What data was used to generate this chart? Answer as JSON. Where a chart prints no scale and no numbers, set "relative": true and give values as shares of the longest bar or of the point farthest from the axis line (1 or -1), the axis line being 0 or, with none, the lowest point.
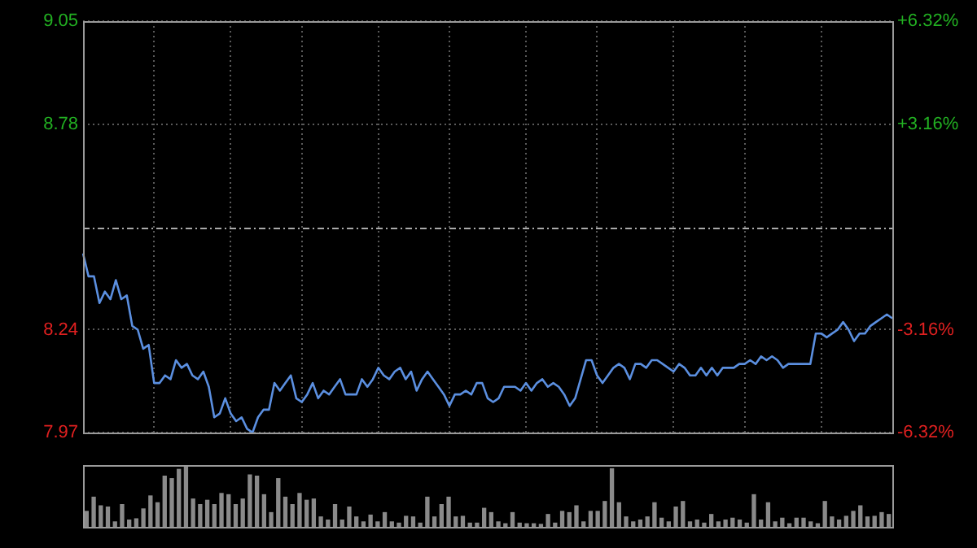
{
  "chart_data": [
    {
      "type": "line",
      "color": "#5b8fe0",
      "categories": [
        null,
        null,
        null,
        null,
        null,
        null,
        null,
        null,
        null,
        null,
        null,
        null,
        null,
        null,
        null,
        null,
        null,
        null,
        null,
        null,
        null,
        null,
        null,
        null,
        null,
        null,
        null,
        null,
        null,
        null,
        null,
        null,
        null,
        null,
        null,
        null,
        null,
        null,
        null,
        null,
        null,
        null,
        null,
        null,
        null,
        null,
        null,
        null,
        null,
        null,
        null,
        null,
        null,
        null,
        null,
        null,
        null,
        null,
        null,
        null,
        null,
        null,
        null,
        null,
        null,
        null,
        null,
        null,
        null,
        null,
        null,
        null,
        null,
        null,
        null,
        null,
        null,
        null,
        null,
        null,
        null,
        null,
        null,
        null,
        null,
        null,
        null,
        null,
        null,
        null,
        null,
        null,
        null,
        null,
        null,
        null,
        null,
        null,
        null,
        null,
        null,
        null,
        null,
        null,
        null,
        null,
        null,
        null,
        null,
        null,
        null,
        null,
        null,
        null,
        null,
        null,
        null,
        null,
        null,
        null,
        null,
        null,
        null,
        null,
        null,
        null,
        null,
        null,
        null,
        null,
        null,
        null,
        null,
        null,
        null,
        null,
        null,
        null,
        null,
        null,
        null,
        null,
        null,
        null,
        null,
        null,
        null,
        null,
        null
      ],
      "values": [
        8.44,
        8.38,
        8.38,
        8.31,
        8.34,
        8.32,
        8.37,
        8.32,
        8.33,
        8.25,
        8.24,
        8.19,
        8.2,
        8.1,
        8.1,
        8.12,
        8.11,
        8.16,
        8.14,
        8.15,
        8.12,
        8.11,
        8.13,
        8.09,
        8.01,
        8.02,
        8.06,
        8.02,
        8.0,
        8.01,
        7.98,
        7.97,
        8.01,
        8.03,
        8.03,
        8.1,
        8.08,
        8.1,
        8.12,
        8.06,
        8.05,
        8.07,
        8.1,
        8.06,
        8.08,
        8.07,
        8.09,
        8.11,
        8.07,
        8.07,
        8.07,
        8.11,
        8.09,
        8.11,
        8.14,
        8.12,
        8.11,
        8.13,
        8.14,
        8.11,
        8.13,
        8.08,
        8.11,
        8.13,
        8.11,
        8.09,
        8.07,
        8.04,
        8.07,
        8.07,
        8.08,
        8.07,
        8.1,
        8.1,
        8.06,
        8.05,
        8.06,
        8.09,
        8.09,
        8.09,
        8.08,
        8.1,
        8.08,
        8.1,
        8.11,
        8.09,
        8.1,
        8.09,
        8.07,
        8.04,
        8.06,
        8.11,
        8.16,
        8.16,
        8.12,
        8.1,
        8.12,
        8.14,
        8.15,
        8.14,
        8.11,
        8.15,
        8.15,
        8.14,
        8.16,
        8.16,
        8.15,
        8.14,
        8.13,
        8.15,
        8.14,
        8.12,
        8.12,
        8.14,
        8.12,
        8.14,
        8.12,
        8.14,
        8.14,
        8.14,
        8.15,
        8.15,
        8.16,
        8.15,
        8.17,
        8.16,
        8.17,
        8.16,
        8.14,
        8.15,
        8.15,
        8.15,
        8.15,
        8.15,
        8.23,
        8.23,
        8.22,
        8.23,
        8.24,
        8.26,
        8.24,
        8.21,
        8.23,
        8.23,
        8.25,
        8.26,
        8.27,
        8.28,
        8.27
      ],
      "ylim": [
        7.97,
        9.05
      ],
      "yticks": [
        7.97,
        8.24,
        8.78,
        9.05
      ],
      "ref_lines": [
        {
          "axis": "y",
          "value": 8.51,
          "color": "#aaaaaa",
          "line_style": "dashed"
        }
      ],
      "y2lim": [
        -6.32,
        6.32
      ],
      "y2ticks": [
        {
          "value": -6.32,
          "label": "-6.32%"
        },
        {
          "value": -3.16,
          "label": "-3.16%"
        },
        {
          "value": 3.16,
          "label": "+3.16%"
        },
        {
          "value": 6.32,
          "label": "+6.32%"
        }
      ],
      "grid": true,
      "legend": false
    },
    {
      "type": "bar",
      "color": "#8a8a8a",
      "relative": true,
      "categories": [
        null,
        null,
        null,
        null,
        null,
        null,
        null,
        null,
        null,
        null,
        null,
        null,
        null,
        null,
        null,
        null,
        null,
        null,
        null,
        null,
        null,
        null,
        null,
        null,
        null,
        null,
        null,
        null,
        null,
        null,
        null,
        null,
        null,
        null,
        null,
        null,
        null,
        null,
        null,
        null,
        null,
        null,
        null,
        null,
        null,
        null,
        null,
        null,
        null,
        null,
        null,
        null,
        null,
        null,
        null,
        null,
        null,
        null,
        null,
        null,
        null,
        null,
        null,
        null,
        null,
        null,
        null,
        null,
        null,
        null,
        null,
        null,
        null,
        null,
        null,
        null,
        null,
        null,
        null,
        null,
        null,
        null,
        null,
        null,
        null,
        null,
        null,
        null,
        null,
        null,
        null,
        null,
        null,
        null,
        null,
        null,
        null,
        null,
        null,
        null,
        null,
        null,
        null,
        null,
        null,
        null,
        null,
        null,
        null,
        null,
        null,
        null,
        null,
        null
      ],
      "values": [
        0.25,
        0.48,
        0.34,
        0.32,
        0.08,
        0.36,
        0.11,
        0.13,
        0.29,
        0.5,
        0.39,
        0.82,
        0.78,
        0.93,
        1,
        0.45,
        0.36,
        0.43,
        0.36,
        0.54,
        0.52,
        0.36,
        0.45,
        0.84,
        0.82,
        0.52,
        0.23,
        0.78,
        0.48,
        0.36,
        0.54,
        0.43,
        0.45,
        0.16,
        0.11,
        0.36,
        0.11,
        0.32,
        0.16,
        0.08,
        0.19,
        0.08,
        0.23,
        0.08,
        0.06,
        0.17,
        0.16,
        0.06,
        0.48,
        0.16,
        0.36,
        0.48,
        0.16,
        0.17,
        0.06,
        0.06,
        0.3,
        0.23,
        0.08,
        0.05,
        0.23,
        0.06,
        0.05,
        0.05,
        0.04,
        0.2,
        0.06,
        0.25,
        0.23,
        0.34,
        0.08,
        0.25,
        0.25,
        0.41,
        0.94,
        0.39,
        0.16,
        0.08,
        0.11,
        0.16,
        0.39,
        0.14,
        0.08,
        0.32,
        0.41,
        0.08,
        0.11,
        0.06,
        0.2,
        0.08,
        0.11,
        0.14,
        0.11,
        0.06,
        0.52,
        0.11,
        0.39,
        0.08,
        0.14,
        0.05,
        0.14,
        0.14,
        0.08,
        0.05,
        0.41,
        0.16,
        0.11,
        0.17,
        0.25,
        0.34,
        0.16,
        0.17,
        0.23,
        0.2
      ]
    }
  ]
}
